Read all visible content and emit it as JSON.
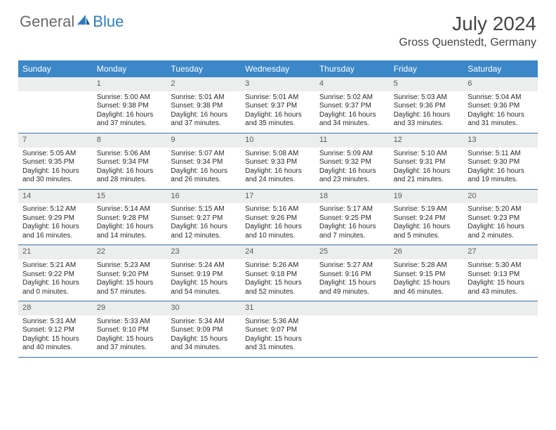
{
  "brand": {
    "general": "General",
    "blue": "Blue"
  },
  "title": "July 2024",
  "location": "Gross Quenstedt, Germany",
  "colors": {
    "header_bg": "#3b87c8",
    "header_text": "#ffffff",
    "daynum_bg": "#eceded",
    "week_border": "#3b6fa0",
    "logo_gray": "#6a6a6a",
    "logo_blue": "#2f7dc0",
    "title_color": "#454545"
  },
  "dayNames": [
    "Sunday",
    "Monday",
    "Tuesday",
    "Wednesday",
    "Thursday",
    "Friday",
    "Saturday"
  ],
  "weeks": [
    [
      {
        "n": "",
        "lines": [
          "",
          "",
          "",
          ""
        ]
      },
      {
        "n": "1",
        "lines": [
          "Sunrise: 5:00 AM",
          "Sunset: 9:38 PM",
          "Daylight: 16 hours",
          "and 37 minutes."
        ]
      },
      {
        "n": "2",
        "lines": [
          "Sunrise: 5:01 AM",
          "Sunset: 9:38 PM",
          "Daylight: 16 hours",
          "and 37 minutes."
        ]
      },
      {
        "n": "3",
        "lines": [
          "Sunrise: 5:01 AM",
          "Sunset: 9:37 PM",
          "Daylight: 16 hours",
          "and 35 minutes."
        ]
      },
      {
        "n": "4",
        "lines": [
          "Sunrise: 5:02 AM",
          "Sunset: 9:37 PM",
          "Daylight: 16 hours",
          "and 34 minutes."
        ]
      },
      {
        "n": "5",
        "lines": [
          "Sunrise: 5:03 AM",
          "Sunset: 9:36 PM",
          "Daylight: 16 hours",
          "and 33 minutes."
        ]
      },
      {
        "n": "6",
        "lines": [
          "Sunrise: 5:04 AM",
          "Sunset: 9:36 PM",
          "Daylight: 16 hours",
          "and 31 minutes."
        ]
      }
    ],
    [
      {
        "n": "7",
        "lines": [
          "Sunrise: 5:05 AM",
          "Sunset: 9:35 PM",
          "Daylight: 16 hours",
          "and 30 minutes."
        ]
      },
      {
        "n": "8",
        "lines": [
          "Sunrise: 5:06 AM",
          "Sunset: 9:34 PM",
          "Daylight: 16 hours",
          "and 28 minutes."
        ]
      },
      {
        "n": "9",
        "lines": [
          "Sunrise: 5:07 AM",
          "Sunset: 9:34 PM",
          "Daylight: 16 hours",
          "and 26 minutes."
        ]
      },
      {
        "n": "10",
        "lines": [
          "Sunrise: 5:08 AM",
          "Sunset: 9:33 PM",
          "Daylight: 16 hours",
          "and 24 minutes."
        ]
      },
      {
        "n": "11",
        "lines": [
          "Sunrise: 5:09 AM",
          "Sunset: 9:32 PM",
          "Daylight: 16 hours",
          "and 23 minutes."
        ]
      },
      {
        "n": "12",
        "lines": [
          "Sunrise: 5:10 AM",
          "Sunset: 9:31 PM",
          "Daylight: 16 hours",
          "and 21 minutes."
        ]
      },
      {
        "n": "13",
        "lines": [
          "Sunrise: 5:11 AM",
          "Sunset: 9:30 PM",
          "Daylight: 16 hours",
          "and 19 minutes."
        ]
      }
    ],
    [
      {
        "n": "14",
        "lines": [
          "Sunrise: 5:12 AM",
          "Sunset: 9:29 PM",
          "Daylight: 16 hours",
          "and 16 minutes."
        ]
      },
      {
        "n": "15",
        "lines": [
          "Sunrise: 5:14 AM",
          "Sunset: 9:28 PM",
          "Daylight: 16 hours",
          "and 14 minutes."
        ]
      },
      {
        "n": "16",
        "lines": [
          "Sunrise: 5:15 AM",
          "Sunset: 9:27 PM",
          "Daylight: 16 hours",
          "and 12 minutes."
        ]
      },
      {
        "n": "17",
        "lines": [
          "Sunrise: 5:16 AM",
          "Sunset: 9:26 PM",
          "Daylight: 16 hours",
          "and 10 minutes."
        ]
      },
      {
        "n": "18",
        "lines": [
          "Sunrise: 5:17 AM",
          "Sunset: 9:25 PM",
          "Daylight: 16 hours",
          "and 7 minutes."
        ]
      },
      {
        "n": "19",
        "lines": [
          "Sunrise: 5:19 AM",
          "Sunset: 9:24 PM",
          "Daylight: 16 hours",
          "and 5 minutes."
        ]
      },
      {
        "n": "20",
        "lines": [
          "Sunrise: 5:20 AM",
          "Sunset: 9:23 PM",
          "Daylight: 16 hours",
          "and 2 minutes."
        ]
      }
    ],
    [
      {
        "n": "21",
        "lines": [
          "Sunrise: 5:21 AM",
          "Sunset: 9:22 PM",
          "Daylight: 16 hours",
          "and 0 minutes."
        ]
      },
      {
        "n": "22",
        "lines": [
          "Sunrise: 5:23 AM",
          "Sunset: 9:20 PM",
          "Daylight: 15 hours",
          "and 57 minutes."
        ]
      },
      {
        "n": "23",
        "lines": [
          "Sunrise: 5:24 AM",
          "Sunset: 9:19 PM",
          "Daylight: 15 hours",
          "and 54 minutes."
        ]
      },
      {
        "n": "24",
        "lines": [
          "Sunrise: 5:26 AM",
          "Sunset: 9:18 PM",
          "Daylight: 15 hours",
          "and 52 minutes."
        ]
      },
      {
        "n": "25",
        "lines": [
          "Sunrise: 5:27 AM",
          "Sunset: 9:16 PM",
          "Daylight: 15 hours",
          "and 49 minutes."
        ]
      },
      {
        "n": "26",
        "lines": [
          "Sunrise: 5:28 AM",
          "Sunset: 9:15 PM",
          "Daylight: 15 hours",
          "and 46 minutes."
        ]
      },
      {
        "n": "27",
        "lines": [
          "Sunrise: 5:30 AM",
          "Sunset: 9:13 PM",
          "Daylight: 15 hours",
          "and 43 minutes."
        ]
      }
    ],
    [
      {
        "n": "28",
        "lines": [
          "Sunrise: 5:31 AM",
          "Sunset: 9:12 PM",
          "Daylight: 15 hours",
          "and 40 minutes."
        ]
      },
      {
        "n": "29",
        "lines": [
          "Sunrise: 5:33 AM",
          "Sunset: 9:10 PM",
          "Daylight: 15 hours",
          "and 37 minutes."
        ]
      },
      {
        "n": "30",
        "lines": [
          "Sunrise: 5:34 AM",
          "Sunset: 9:09 PM",
          "Daylight: 15 hours",
          "and 34 minutes."
        ]
      },
      {
        "n": "31",
        "lines": [
          "Sunrise: 5:36 AM",
          "Sunset: 9:07 PM",
          "Daylight: 15 hours",
          "and 31 minutes."
        ]
      },
      {
        "n": "",
        "lines": [
          "",
          "",
          "",
          ""
        ]
      },
      {
        "n": "",
        "lines": [
          "",
          "",
          "",
          ""
        ]
      },
      {
        "n": "",
        "lines": [
          "",
          "",
          "",
          ""
        ]
      }
    ]
  ]
}
